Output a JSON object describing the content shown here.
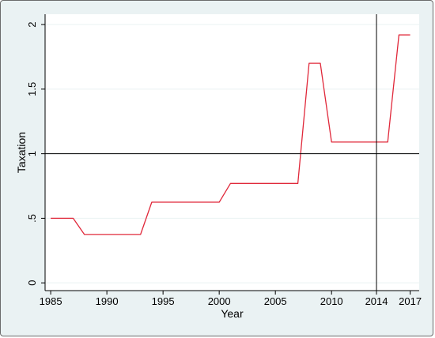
{
  "chart_data": {
    "type": "line",
    "title": "",
    "xlabel": "Year",
    "ylabel": "Taxation",
    "xlim": [
      1984.5,
      2017.8
    ],
    "ylim": [
      -0.06,
      2.08
    ],
    "x_ticks": [
      {
        "value": 1985,
        "label": "1985"
      },
      {
        "value": 1990,
        "label": "1990"
      },
      {
        "value": 1995,
        "label": "1995"
      },
      {
        "value": 2000,
        "label": "2000"
      },
      {
        "value": 2005,
        "label": "2005"
      },
      {
        "value": 2010,
        "label": "2010"
      },
      {
        "value": 2014,
        "label": "2014"
      },
      {
        "value": 2017,
        "label": "2017"
      }
    ],
    "y_ticks": [
      {
        "value": 0,
        "label": "0"
      },
      {
        "value": 0.5,
        "label": ".5"
      },
      {
        "value": 1,
        "label": "1"
      },
      {
        "value": 1.5,
        "label": "1.5"
      },
      {
        "value": 2,
        "label": "2"
      }
    ],
    "grid": true,
    "reference_lines": [
      {
        "axis": "y",
        "value": 1
      },
      {
        "axis": "x",
        "value": 2014
      }
    ],
    "series": [
      {
        "color": "#e0283a",
        "x": [
          1985,
          1987,
          1988,
          1993,
          1994,
          2000,
          2001,
          2007,
          2008,
          2009,
          2010,
          2015,
          2016,
          2017
        ],
        "y": [
          0.5,
          0.5,
          0.375,
          0.375,
          0.625,
          0.625,
          0.77,
          0.77,
          1.7,
          1.7,
          1.09,
          1.09,
          1.92,
          1.92
        ]
      }
    ],
    "colors": {
      "frame_background": "#eaf2f3",
      "plot_background": "#ffffff",
      "gridline": "#eaf2f3",
      "axis": "#000000",
      "reference_line": "#000000"
    }
  }
}
